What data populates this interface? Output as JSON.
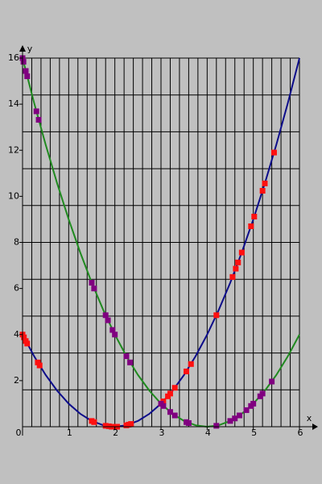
{
  "chart_data": {
    "type": "scatter",
    "x_label": "x",
    "y_label": "y",
    "xlim": [
      0,
      6
    ],
    "ylim": [
      0,
      16
    ],
    "xticks": [
      0,
      1,
      2,
      3,
      4,
      5,
      6
    ],
    "yticks": [
      2,
      4,
      6,
      8,
      10,
      12,
      14,
      16
    ],
    "xgrid": [
      0.2,
      0.4,
      0.6,
      0.8,
      1,
      1.2,
      1.4,
      1.6,
      1.8,
      2,
      2.2,
      2.4,
      2.6,
      2.8,
      3,
      3.2,
      3.4,
      3.6,
      3.8,
      4,
      4.2,
      4.4,
      4.6,
      4.8,
      5,
      5.2,
      5.4,
      5.6,
      5.8,
      6
    ],
    "ygrid": [
      1.6,
      3.2,
      4.8,
      6.4,
      8,
      9.6,
      11.2,
      12.8,
      14.4,
      16
    ],
    "series": [
      {
        "style": "line",
        "color": "#0c0c8a",
        "x": [
          0,
          0.25,
          0.5,
          0.75,
          1,
          1.25,
          1.5,
          1.75,
          2,
          2.25,
          2.5,
          2.75,
          3,
          3.25,
          3.5,
          3.75,
          4,
          4.25,
          4.5,
          4.75,
          5,
          5.25,
          5.5,
          5.75,
          6
        ],
        "values": [
          4,
          3.0625,
          2.25,
          1.5625,
          1,
          0.5625,
          0.25,
          0.0625,
          0,
          0.0625,
          0.25,
          0.5625,
          1,
          1.5625,
          2.25,
          3.0625,
          4,
          5.0625,
          6.25,
          7.5625,
          9,
          10.5625,
          12.25,
          14.0625,
          16
        ]
      },
      {
        "style": "line",
        "color": "#1f8a1f",
        "x": [
          0,
          0.25,
          0.5,
          0.75,
          1,
          1.25,
          1.5,
          1.75,
          2,
          2.25,
          2.5,
          2.75,
          3,
          3.25,
          3.5,
          3.75,
          4,
          4.25,
          4.5,
          4.75,
          5,
          5.25,
          5.5,
          5.75,
          6
        ],
        "values": [
          16,
          14.0625,
          12.25,
          10.5625,
          9,
          7.5625,
          6.25,
          5.0625,
          4,
          3.0625,
          2.25,
          1.5625,
          1,
          0.5625,
          0.25,
          0.0625,
          0,
          0.0625,
          0.25,
          0.5625,
          1,
          1.5625,
          2.25,
          3.0625,
          4
        ]
      },
      {
        "style": "markers",
        "color": "#ff1010",
        "x": [
          0,
          0.03,
          0.07,
          0.1,
          0.33,
          0.37,
          1.5,
          1.55,
          1.8,
          1.87,
          1.93,
          2,
          2.05,
          2.25,
          2.3,
          2.35,
          3,
          3.05,
          3.15,
          3.2,
          3.3,
          3.55,
          3.65,
          4.2,
          4.55,
          4.62,
          4.67,
          4.75,
          4.95,
          5.02,
          5.2,
          5.25,
          5.45
        ],
        "values": [
          4,
          3.88,
          3.72,
          3.61,
          2.79,
          2.66,
          0.25,
          0.2,
          0.04,
          0.02,
          0,
          0,
          0,
          0.06,
          0.09,
          0.12,
          1,
          1.1,
          1.32,
          1.44,
          1.69,
          2.4,
          2.72,
          4.84,
          6.5,
          6.86,
          7.13,
          7.56,
          8.7,
          9.12,
          10.24,
          10.56,
          11.9
        ]
      },
      {
        "style": "markers",
        "color": "#800080",
        "x": [
          0,
          0.02,
          0.07,
          0.1,
          0.3,
          0.35,
          1.5,
          1.55,
          1.8,
          1.85,
          1.95,
          2,
          2.25,
          2.33,
          3,
          3.05,
          3.2,
          3.3,
          3.55,
          3.6,
          4.2,
          4.5,
          4.6,
          4.7,
          4.85,
          4.95,
          5,
          5.15,
          5.2,
          5.4
        ],
        "values": [
          16,
          15.84,
          15.44,
          15.21,
          13.69,
          13.32,
          6.25,
          6,
          4.84,
          4.62,
          4.2,
          4,
          3.06,
          2.79,
          1,
          0.9,
          0.64,
          0.49,
          0.2,
          0.16,
          0.04,
          0.25,
          0.36,
          0.49,
          0.72,
          0.9,
          1,
          1.32,
          1.44,
          1.96
        ]
      }
    ]
  }
}
